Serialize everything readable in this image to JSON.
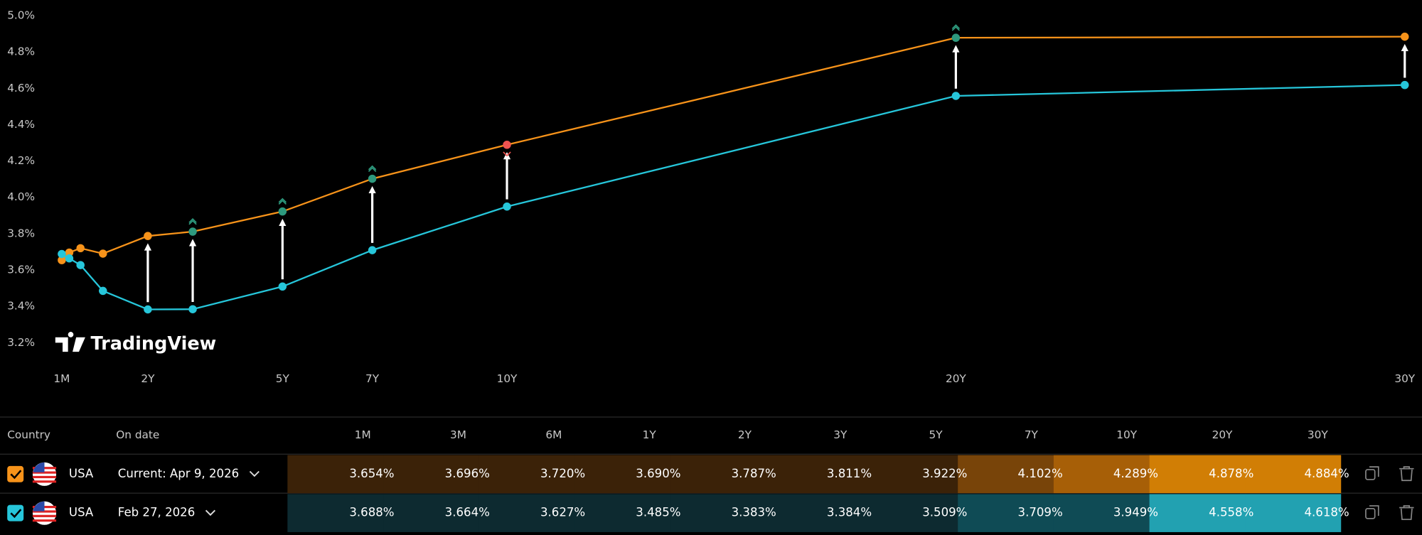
{
  "chart_data": {
    "type": "line",
    "watermark": "TradingView",
    "x": [
      0.0833,
      0.25,
      0.5,
      1,
      2,
      3,
      5,
      7,
      10,
      20,
      30
    ],
    "xlim": [
      -1.293,
      30.384
    ],
    "xticks": [
      {
        "value": 0.0833,
        "label": "1M"
      },
      {
        "value": 2,
        "label": "2Y"
      },
      {
        "value": 5,
        "label": "5Y"
      },
      {
        "value": 7,
        "label": "7Y"
      },
      {
        "value": 10,
        "label": "10Y"
      },
      {
        "value": 20,
        "label": "20Y"
      },
      {
        "value": 30,
        "label": "30Y"
      }
    ],
    "ylim": [
      3.09,
      5.085
    ],
    "yticks": [
      {
        "value": 3.2,
        "label": "3.2%"
      },
      {
        "value": 3.4,
        "label": "3.4%"
      },
      {
        "value": 3.6,
        "label": "3.6%"
      },
      {
        "value": 3.8,
        "label": "3.8%"
      },
      {
        "value": 4.0,
        "label": "4.0%"
      },
      {
        "value": 4.2,
        "label": "4.2%"
      },
      {
        "value": 4.4,
        "label": "4.4%"
      },
      {
        "value": 4.6,
        "label": "4.6%"
      },
      {
        "value": 4.8,
        "label": "4.8%"
      },
      {
        "value": 5.0,
        "label": "5.0%"
      }
    ],
    "grid": false,
    "series": [
      {
        "name": "Current: Apr 9, 2026",
        "color": "#f7931a",
        "values": [
          3.654,
          3.696,
          3.72,
          3.69,
          3.787,
          3.811,
          3.922,
          4.102,
          4.289,
          4.878,
          4.884
        ],
        "value_labels": [
          "3.654%",
          "3.696%",
          "3.720%",
          "3.690%",
          "3.787%",
          "3.811%",
          "3.922%",
          "4.102%",
          "4.289%",
          "4.878%",
          "4.884%"
        ],
        "point_colors": [
          "#f7931a",
          "#f7931a",
          "#f7931a",
          "#f7931a",
          "#f7931a",
          "#2e9a7e",
          "#2e9a7e",
          "#2e9a7e",
          "#f05350",
          "#2e9a7e",
          "#f7931a"
        ],
        "cell_colors": [
          "#3b2208",
          "#3b2208",
          "#3b2208",
          "#3b2208",
          "#3b2208",
          "#3b2208",
          "#3b2208",
          "#784409",
          "#a75f07",
          "#d17e05",
          "#d17e05"
        ]
      },
      {
        "name": "Feb 27, 2026",
        "color": "#26c6da",
        "values": [
          3.688,
          3.664,
          3.627,
          3.485,
          3.383,
          3.384,
          3.509,
          3.709,
          3.949,
          4.558,
          4.618
        ],
        "value_labels": [
          "3.688%",
          "3.664%",
          "3.627%",
          "3.485%",
          "3.383%",
          "3.384%",
          "3.509%",
          "3.709%",
          "3.949%",
          "4.558%",
          "4.618%"
        ],
        "cell_colors": [
          "#0d2a30",
          "#0d2a30",
          "#0d2a30",
          "#0d2a30",
          "#0d2a30",
          "#0d2a30",
          "#0d2a30",
          "#0f4b55",
          "#0f4b55",
          "#22a1b1",
          "#22a1b1"
        ]
      }
    ]
  },
  "table": {
    "headers": [
      "Country",
      "On date"
    ],
    "columns": [
      "1M",
      "3M",
      "6M",
      "1Y",
      "2Y",
      "3Y",
      "5Y",
      "7Y",
      "10Y",
      "20Y",
      "30Y"
    ],
    "rows": [
      {
        "country": "USA"
      },
      {
        "country": "USA"
      }
    ]
  }
}
